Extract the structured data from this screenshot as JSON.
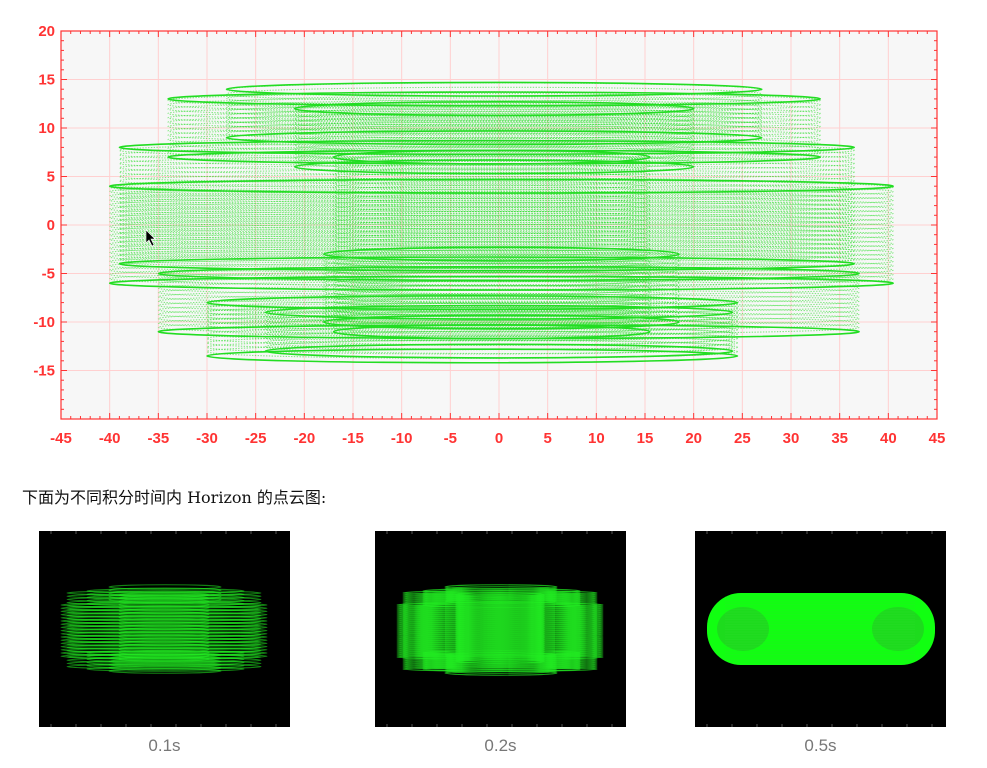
{
  "chart_data": {
    "type": "scatter",
    "xlim": [
      -45,
      45
    ],
    "ylim": [
      -20,
      20
    ],
    "x_ticks": [
      "-45",
      "-40",
      "-35",
      "-30",
      "-25",
      "-20",
      "-15",
      "-10",
      "-5",
      "0",
      "5",
      "10",
      "15",
      "20",
      "25",
      "30",
      "35",
      "40",
      "45"
    ],
    "y_ticks": [
      "20",
      "15",
      "10",
      "5",
      "0",
      "-5",
      "-10",
      "-15"
    ],
    "grid": true,
    "colors": {
      "axis": "#ff3333",
      "grid": "#ffd0d0",
      "background": "#f7f7f7",
      "points": "#22dd22"
    },
    "scan_bands": [
      {
        "x": [
          -40,
          40.5
        ],
        "y": [
          -6,
          4
        ]
      },
      {
        "x": [
          -39,
          36.5
        ],
        "y": [
          -4,
          8
        ]
      },
      {
        "x": [
          -35,
          37
        ],
        "y": [
          -11,
          -5
        ]
      },
      {
        "x": [
          -34,
          33
        ],
        "y": [
          7,
          13
        ]
      },
      {
        "x": [
          -28,
          27
        ],
        "y": [
          9,
          14
        ]
      },
      {
        "x": [
          -30,
          24.5
        ],
        "y": [
          -13.5,
          -8
        ]
      },
      {
        "x": [
          -24,
          24
        ],
        "y": [
          -13,
          -9
        ]
      },
      {
        "x": [
          -17,
          15.5
        ],
        "y": [
          -11,
          7
        ]
      },
      {
        "x": [
          -21,
          20
        ],
        "y": [
          6,
          12
        ]
      },
      {
        "x": [
          -18,
          18.5
        ],
        "y": [
          -10,
          -3
        ]
      }
    ]
  },
  "caption": "下面为不同积分时间内 Horizon 的点云图:",
  "thumbnails": [
    {
      "label": "0.1s",
      "density": "sparse"
    },
    {
      "label": "0.2s",
      "density": "medium"
    },
    {
      "label": "0.5s",
      "density": "dense"
    }
  ]
}
